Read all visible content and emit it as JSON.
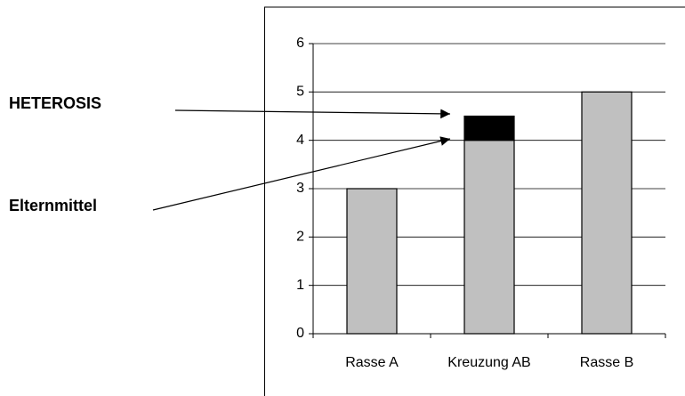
{
  "chart_data": {
    "type": "stacked_bar",
    "categories": [
      "Rasse A",
      "Kreuzung AB",
      "Rasse B"
    ],
    "series": [
      {
        "color": "#c0c0c0",
        "values": [
          3,
          4,
          5
        ]
      },
      {
        "color": "#000000",
        "values": [
          null,
          0.5,
          null
        ]
      }
    ],
    "ylim": [
      0,
      6
    ],
    "yticks": [
      0,
      1,
      2,
      3,
      4,
      5,
      6
    ],
    "grid": true,
    "annotations": [
      "HETEROSIS",
      "Elternmittel"
    ]
  }
}
